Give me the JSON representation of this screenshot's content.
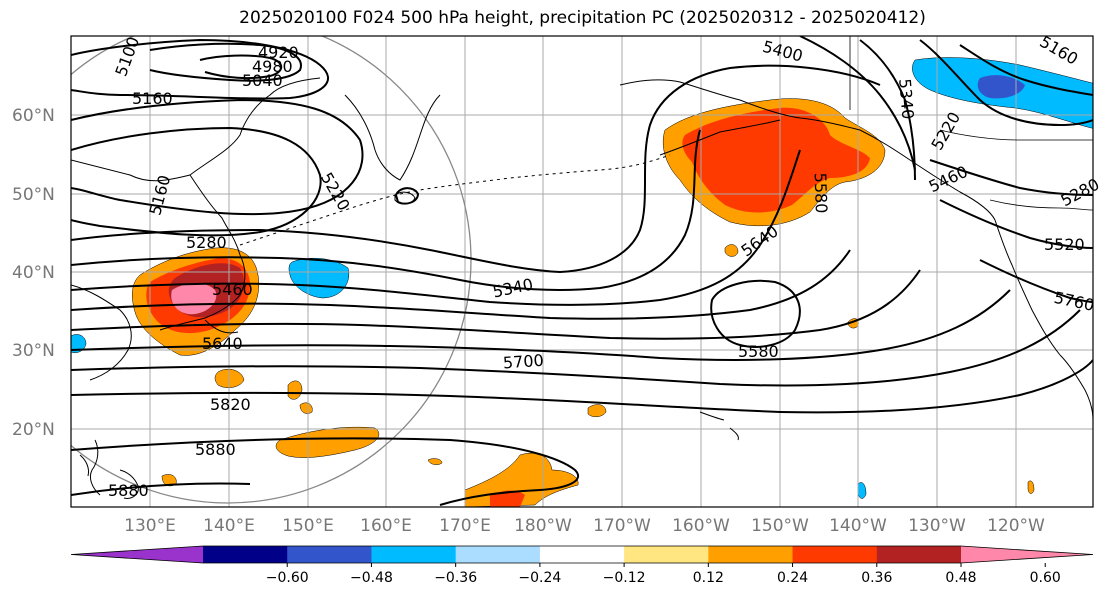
{
  "title": "2025020100 F024 500 hPa height, precipitation PC (2025020312 - 2025020412)",
  "latitude_labels": [
    "60°N",
    "50°N",
    "40°N",
    "30°N",
    "20°N"
  ],
  "longitude_labels": [
    "130°E",
    "140°E",
    "150°E",
    "160°E",
    "170°E",
    "180°W",
    "170°W",
    "160°W",
    "150°W",
    "140°W",
    "130°W",
    "120°W"
  ],
  "contour_labels": [
    "5100",
    "4920",
    "4980",
    "5040",
    "5160",
    "5160",
    "5400",
    "5340",
    "5160",
    "5220",
    "5220",
    "5460",
    "5280",
    "5460",
    "5580",
    "5640",
    "5340",
    "5520",
    "5640",
    "5580",
    "5700",
    "5760",
    "5820",
    "5880",
    "5880",
    "5280"
  ],
  "colorbar": {
    "tick_labels": [
      "−0.60",
      "−0.48",
      "−0.36",
      "−0.24",
      "−0.12",
      "0.12",
      "0.24",
      "0.36",
      "0.48",
      "0.60"
    ],
    "colors": [
      "#9933cc",
      "#000088",
      "#3355cc",
      "#00bbff",
      "#aaddff",
      "#ffffff",
      "#ffe680",
      "#ff9f00",
      "#ff3a00",
      "#b22222",
      "#ff88aa"
    ]
  },
  "palette": {
    "contour": "#000000",
    "grid": "#aaaaaa",
    "coast": "#000000",
    "circle": "#888888"
  }
}
